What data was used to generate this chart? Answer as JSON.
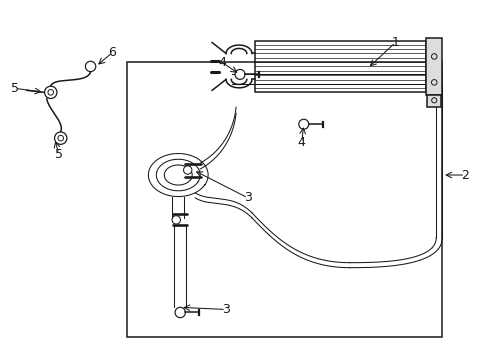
{
  "bg_color": "#ffffff",
  "line_color": "#1a1a1a",
  "fig_width": 4.89,
  "fig_height": 3.6,
  "dpi": 100,
  "label_fs": 9,
  "lw_main": 1.1,
  "lw_thin": 0.75
}
